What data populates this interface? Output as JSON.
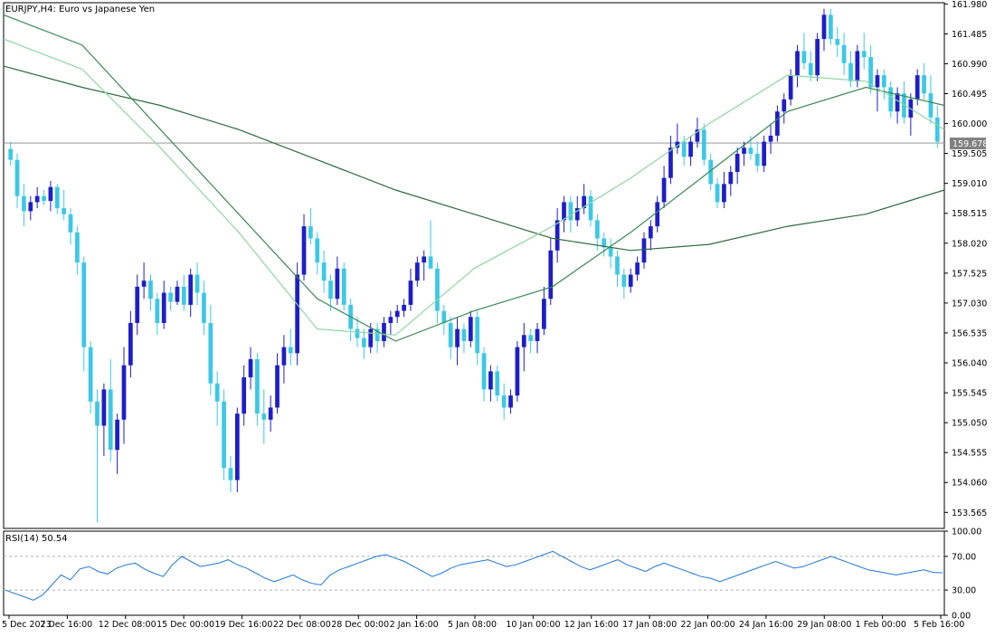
{
  "window": {
    "title": "EURJPY,H4:  Euro vs Japanese Yen"
  },
  "chart_data": [
    {
      "type": "candlestick",
      "symbol": "EURJPY",
      "timeframe": "H4",
      "title": "EURJPY,H4:  Euro vs Japanese Yen",
      "current_price": "159.678",
      "ylim": [
        153.3,
        162.0
      ],
      "y_ticks": [
        "161.980",
        "161.485",
        "160.990",
        "160.495",
        "160.000",
        "159.505",
        "159.010",
        "158.515",
        "158.020",
        "157.525",
        "157.030",
        "156.535",
        "156.040",
        "155.545",
        "155.050",
        "154.555",
        "154.060",
        "153.565"
      ],
      "x_ticks": [
        "5 Dec 2023",
        "7 Dec 16:00",
        "12 Dec 08:00",
        "15 Dec 00:00",
        "19 Dec 16:00",
        "22 Dec 08:00",
        "28 Dec 00:00",
        "2 Jan 16:00",
        "5 Jan 08:00",
        "10 Jan 00:00",
        "12 Jan 16:00",
        "17 Jan 08:00",
        "22 Jan 00:00",
        "24 Jan 16:00",
        "29 Jan 08:00",
        "1 Feb 00:00",
        "5 Feb 16:00"
      ],
      "bull_color": "#1e1ec8",
      "bear_color": "#3cc8e6",
      "candles": [
        [
          159.58,
          159.7,
          159.3,
          159.4
        ],
        [
          159.4,
          159.5,
          158.6,
          158.8
        ],
        [
          158.8,
          159.0,
          158.3,
          158.55
        ],
        [
          158.55,
          158.8,
          158.4,
          158.7
        ],
        [
          158.7,
          158.95,
          158.6,
          158.8
        ],
        [
          158.8,
          158.9,
          158.65,
          158.72
        ],
        [
          158.72,
          159.05,
          158.55,
          158.95
        ],
        [
          158.95,
          159.0,
          158.5,
          158.6
        ],
        [
          158.6,
          158.9,
          158.4,
          158.5
        ],
        [
          158.5,
          158.6,
          158.0,
          158.2
        ],
        [
          158.2,
          158.3,
          157.5,
          157.7
        ],
        [
          157.7,
          157.8,
          155.9,
          156.3
        ],
        [
          156.3,
          156.4,
          155.2,
          155.4
        ],
        [
          155.4,
          155.6,
          153.4,
          155.0
        ],
        [
          155.0,
          155.7,
          154.5,
          155.6
        ],
        [
          155.6,
          156.1,
          154.4,
          154.6
        ],
        [
          154.6,
          155.2,
          154.2,
          155.1
        ],
        [
          155.1,
          156.3,
          154.7,
          156.0
        ],
        [
          156.0,
          156.9,
          155.8,
          156.7
        ],
        [
          156.7,
          157.5,
          156.5,
          157.3
        ],
        [
          157.3,
          157.7,
          157.1,
          157.4
        ],
        [
          157.4,
          157.5,
          156.9,
          157.1
        ],
        [
          157.1,
          157.2,
          156.5,
          156.7
        ],
        [
          156.7,
          157.4,
          156.6,
          157.2
        ],
        [
          157.2,
          157.3,
          156.9,
          157.05
        ],
        [
          157.05,
          157.4,
          157.0,
          157.3
        ],
        [
          157.3,
          157.5,
          156.9,
          157.0
        ],
        [
          157.0,
          157.6,
          156.8,
          157.5
        ],
        [
          157.5,
          157.7,
          157.0,
          157.2
        ],
        [
          157.2,
          157.4,
          156.5,
          156.7
        ],
        [
          156.7,
          157.0,
          155.5,
          155.7
        ],
        [
          155.7,
          155.9,
          155.0,
          155.4
        ],
        [
          155.4,
          155.6,
          154.1,
          154.3
        ],
        [
          154.3,
          154.5,
          153.9,
          154.1
        ],
        [
          154.1,
          155.3,
          153.9,
          155.2
        ],
        [
          155.2,
          156.0,
          155.0,
          155.8
        ],
        [
          155.8,
          156.3,
          155.6,
          156.1
        ],
        [
          156.1,
          156.2,
          155.0,
          155.2
        ],
        [
          155.2,
          155.6,
          154.7,
          155.1
        ],
        [
          155.1,
          155.5,
          154.9,
          155.3
        ],
        [
          155.3,
          156.2,
          155.2,
          156.0
        ],
        [
          156.0,
          156.5,
          155.7,
          156.3
        ],
        [
          156.3,
          156.6,
          156.0,
          156.2
        ],
        [
          156.2,
          157.7,
          156.0,
          157.5
        ],
        [
          157.5,
          158.5,
          157.4,
          158.3
        ],
        [
          158.3,
          158.6,
          158.0,
          158.1
        ],
        [
          158.1,
          158.2,
          157.5,
          157.7
        ],
        [
          157.7,
          157.9,
          157.2,
          157.4
        ],
        [
          157.4,
          157.5,
          156.9,
          157.1
        ],
        [
          157.1,
          157.8,
          157.0,
          157.6
        ],
        [
          157.6,
          157.7,
          156.9,
          157.0
        ],
        [
          157.0,
          157.1,
          156.4,
          156.6
        ],
        [
          156.6,
          156.8,
          156.3,
          156.45
        ],
        [
          156.45,
          156.6,
          156.1,
          156.3
        ],
        [
          156.3,
          156.7,
          156.2,
          156.6
        ],
        [
          156.6,
          156.7,
          156.2,
          156.4
        ],
        [
          156.4,
          156.8,
          156.3,
          156.7
        ],
        [
          156.7,
          156.9,
          156.5,
          156.8
        ],
        [
          156.8,
          157.0,
          156.7,
          156.9
        ],
        [
          156.9,
          157.1,
          156.8,
          157.0
        ],
        [
          157.0,
          157.6,
          156.9,
          157.4
        ],
        [
          157.4,
          157.8,
          157.3,
          157.7
        ],
        [
          157.7,
          157.9,
          157.4,
          157.8
        ],
        [
          157.8,
          158.4,
          157.6,
          157.6
        ],
        [
          157.6,
          157.7,
          156.7,
          156.9
        ],
        [
          156.9,
          157.0,
          156.5,
          156.7
        ],
        [
          156.7,
          156.8,
          156.1,
          156.3
        ],
        [
          156.3,
          156.8,
          156.0,
          156.6
        ],
        [
          156.6,
          156.7,
          156.2,
          156.4
        ],
        [
          156.4,
          156.9,
          156.3,
          156.8
        ],
        [
          156.8,
          156.9,
          156.0,
          156.2
        ],
        [
          156.2,
          156.3,
          155.4,
          155.6
        ],
        [
          155.6,
          156.0,
          155.4,
          155.9
        ],
        [
          155.9,
          156.0,
          155.4,
          155.5
        ],
        [
          155.5,
          155.7,
          155.1,
          155.3
        ],
        [
          155.3,
          155.6,
          155.2,
          155.5
        ],
        [
          155.5,
          156.4,
          155.4,
          156.3
        ],
        [
          156.3,
          156.7,
          155.9,
          156.5
        ],
        [
          156.5,
          156.6,
          156.2,
          156.4
        ],
        [
          156.4,
          156.7,
          156.2,
          156.6
        ],
        [
          156.6,
          157.3,
          156.5,
          157.1
        ],
        [
          157.1,
          158.1,
          157.0,
          157.9
        ],
        [
          157.9,
          158.6,
          157.7,
          158.4
        ],
        [
          158.4,
          158.8,
          158.2,
          158.7
        ],
        [
          158.7,
          158.8,
          158.2,
          158.4
        ],
        [
          158.4,
          158.8,
          158.3,
          158.6
        ],
        [
          158.6,
          159.0,
          158.5,
          158.8
        ],
        [
          158.8,
          158.9,
          158.3,
          158.4
        ],
        [
          158.4,
          158.5,
          157.9,
          158.1
        ],
        [
          158.1,
          158.2,
          157.8,
          157.95
        ],
        [
          157.95,
          158.1,
          157.6,
          157.8
        ],
        [
          157.8,
          157.9,
          157.3,
          157.5
        ],
        [
          157.5,
          157.6,
          157.1,
          157.3
        ],
        [
          157.3,
          157.6,
          157.2,
          157.5
        ],
        [
          157.5,
          157.8,
          157.4,
          157.7
        ],
        [
          157.7,
          158.2,
          157.6,
          158.1
        ],
        [
          158.1,
          158.4,
          157.9,
          158.3
        ],
        [
          158.3,
          158.8,
          158.2,
          158.7
        ],
        [
          158.7,
          159.3,
          158.6,
          159.1
        ],
        [
          159.1,
          159.8,
          159.0,
          159.6
        ],
        [
          159.6,
          160.0,
          159.5,
          159.7
        ],
        [
          159.7,
          159.8,
          159.3,
          159.45
        ],
        [
          159.45,
          159.8,
          159.3,
          159.7
        ],
        [
          159.7,
          160.1,
          159.6,
          159.9
        ],
        [
          159.9,
          160.0,
          159.3,
          159.4
        ],
        [
          159.4,
          159.5,
          158.9,
          159.0
        ],
        [
          159.0,
          159.1,
          158.6,
          158.7
        ],
        [
          158.7,
          159.2,
          158.6,
          159.0
        ],
        [
          159.0,
          159.3,
          158.8,
          159.2
        ],
        [
          159.2,
          159.6,
          159.0,
          159.5
        ],
        [
          159.5,
          159.7,
          159.3,
          159.6
        ],
        [
          159.6,
          159.8,
          159.4,
          159.5
        ],
        [
          159.5,
          159.7,
          159.2,
          159.3
        ],
        [
          159.3,
          159.8,
          159.2,
          159.7
        ],
        [
          159.7,
          160.0,
          159.5,
          159.8
        ],
        [
          159.8,
          160.3,
          159.7,
          160.2
        ],
        [
          160.2,
          160.5,
          160.0,
          160.4
        ],
        [
          160.4,
          160.9,
          160.3,
          160.8
        ],
        [
          160.8,
          161.3,
          160.6,
          161.2
        ],
        [
          161.2,
          161.5,
          160.9,
          161.0
        ],
        [
          161.0,
          161.2,
          160.7,
          160.8
        ],
        [
          160.8,
          161.5,
          160.7,
          161.4
        ],
        [
          161.4,
          161.9,
          161.2,
          161.8
        ],
        [
          161.8,
          161.9,
          161.3,
          161.4
        ],
        [
          161.4,
          161.6,
          161.1,
          161.3
        ],
        [
          161.3,
          161.5,
          160.8,
          161.0
        ],
        [
          161.0,
          161.2,
          160.6,
          160.7
        ],
        [
          160.7,
          161.3,
          160.6,
          161.2
        ],
        [
          161.2,
          161.5,
          160.9,
          161.1
        ],
        [
          161.1,
          161.3,
          160.5,
          160.6
        ],
        [
          160.6,
          160.9,
          160.2,
          160.8
        ],
        [
          160.8,
          160.9,
          160.4,
          160.6
        ],
        [
          160.6,
          160.7,
          160.1,
          160.2
        ],
        [
          160.2,
          160.6,
          160.0,
          160.5
        ],
        [
          160.5,
          160.7,
          160.0,
          160.1
        ],
        [
          160.1,
          160.5,
          159.8,
          160.4
        ],
        [
          160.4,
          160.9,
          160.3,
          160.8
        ],
        [
          160.8,
          161.0,
          160.4,
          160.5
        ],
        [
          160.5,
          160.8,
          160.0,
          160.1
        ],
        [
          160.1,
          160.3,
          159.6,
          159.7
        ]
      ],
      "ma_fast": [
        161.4,
        160.9,
        159.6,
        158.2,
        156.6,
        156.5,
        157.6,
        158.3,
        159.1,
        160.0,
        160.8,
        160.7,
        159.9
      ],
      "ma_mid": [
        161.8,
        161.3,
        159.9,
        158.5,
        157.1,
        156.4,
        156.9,
        157.3,
        158.2,
        159.2,
        160.2,
        160.6,
        160.3
      ],
      "ma_slow": [
        160.95,
        160.6,
        160.3,
        159.9,
        159.4,
        158.9,
        158.5,
        158.1,
        157.9,
        158.0,
        158.3,
        158.5,
        158.9
      ],
      "rsi_current": "50.54"
    },
    {
      "type": "line",
      "title": "RSI(14) 50.54",
      "ylim": [
        0,
        100
      ],
      "y_ticks": [
        "100.00",
        "70.00",
        "30.00",
        "0.00"
      ],
      "levels": [
        70,
        30
      ],
      "color": "#1e78dc",
      "values": [
        30,
        26,
        22,
        18,
        24,
        36,
        48,
        42,
        55,
        58,
        52,
        49,
        56,
        60,
        62,
        55,
        50,
        46,
        60,
        70,
        64,
        58,
        60,
        62,
        66,
        60,
        56,
        50,
        44,
        40,
        44,
        48,
        42,
        38,
        36,
        48,
        54,
        58,
        62,
        66,
        70,
        72,
        68,
        64,
        58,
        52,
        46,
        50,
        56,
        60,
        62,
        64,
        66,
        62,
        58,
        60,
        64,
        68,
        72,
        76,
        70,
        64,
        58,
        54,
        58,
        62,
        66,
        60,
        56,
        52,
        58,
        62,
        58,
        54,
        50,
        46,
        44,
        40,
        44,
        48,
        52,
        56,
        60,
        64,
        60,
        56,
        58,
        62,
        66,
        70,
        66,
        62,
        58,
        54,
        52,
        50,
        48,
        50,
        52,
        54,
        51,
        50.54
      ]
    }
  ]
}
